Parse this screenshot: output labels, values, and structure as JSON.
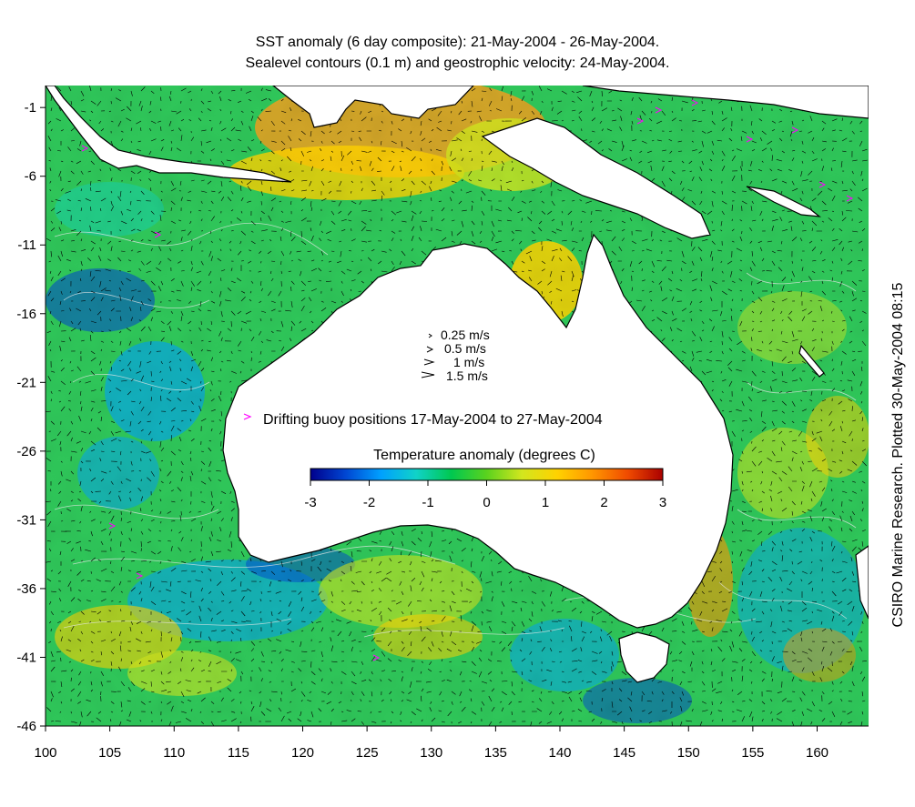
{
  "title_line1": "SST anomaly (6 day composite): 21-May-2004 - 26-May-2004.",
  "title_line2": "Sealevel contours (0.1 m) and geostrophic velocity: 24-May-2004.",
  "credit": "CSIRO Marine Research. Plotted 30-May-2004 08:15",
  "axes": {
    "lat_ticks": [
      "-1",
      "-6",
      "-11",
      "-16",
      "-21",
      "-26",
      "-31",
      "-36",
      "-41",
      "-46"
    ],
    "lon_ticks": [
      "100",
      "105",
      "110",
      "115",
      "120",
      "125",
      "130",
      "135",
      "140",
      "145",
      "150",
      "155",
      "160"
    ],
    "lat_range": [
      -46,
      0.6
    ],
    "lon_range": [
      100,
      164
    ]
  },
  "velocity_legend": [
    "0.25 m/s",
    "0.5 m/s",
    "1 m/s",
    "1.5 m/s"
  ],
  "buoy_legend": "Drifting buoy positions 17-May-2004 to 27-May-2004",
  "colorbar": {
    "title": "Temperature anomaly (degrees C)",
    "range": [
      -3,
      3
    ],
    "ticks": [
      "-3",
      "-2",
      "-1",
      "0",
      "1",
      "2",
      "3"
    ],
    "colors": [
      "#00008c",
      "#0046d2",
      "#00a0ff",
      "#10d2c8",
      "#00c850",
      "#5ad21e",
      "#d2e61e",
      "#ffd200",
      "#ff9600",
      "#f04b00",
      "#aa0000"
    ]
  },
  "colors": {
    "ocean_base": "#2fc85a",
    "land": "#ffffff",
    "coast": "#000000",
    "buoy": "#ff00ff",
    "contour": "#e6e6e6"
  }
}
